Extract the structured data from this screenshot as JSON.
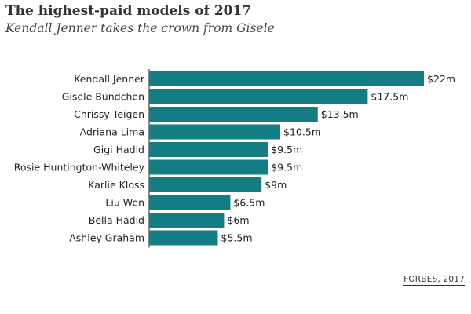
{
  "header": {
    "title": "The highest-paid models of 2017",
    "subtitle": "Kendall Jenner takes the crown from Gisele"
  },
  "source": "FORBES, 2017",
  "colors": {
    "bar": "#147c83",
    "axis": "#222222"
  },
  "chart_data": {
    "type": "bar",
    "orientation": "horizontal",
    "title": "The highest-paid models of 2017",
    "subtitle": "Kendall Jenner takes the crown from Gisele",
    "xlabel": "",
    "ylabel": "",
    "unit": "$m",
    "grid": false,
    "legend": "none",
    "categories": [
      "Kendall Jenner",
      "Gisele Bündchen",
      "Chrissy Teigen",
      "Adriana Lima",
      "Gigi Hadid",
      "Rosie Huntington-Whiteley",
      "Karlie Kloss",
      "Liu Wen",
      "Bella Hadid",
      "Ashley Graham"
    ],
    "values": [
      22,
      17.5,
      13.5,
      10.5,
      9.5,
      9.5,
      9,
      6.5,
      6,
      5.5
    ],
    "value_labels": [
      "$22m",
      "$17.5m",
      "$13.5m",
      "$10.5m",
      "$9.5m",
      "$9.5m",
      "$9m",
      "$6.5m",
      "$6m",
      "$5.5m"
    ],
    "xlim": [
      0,
      22
    ]
  }
}
